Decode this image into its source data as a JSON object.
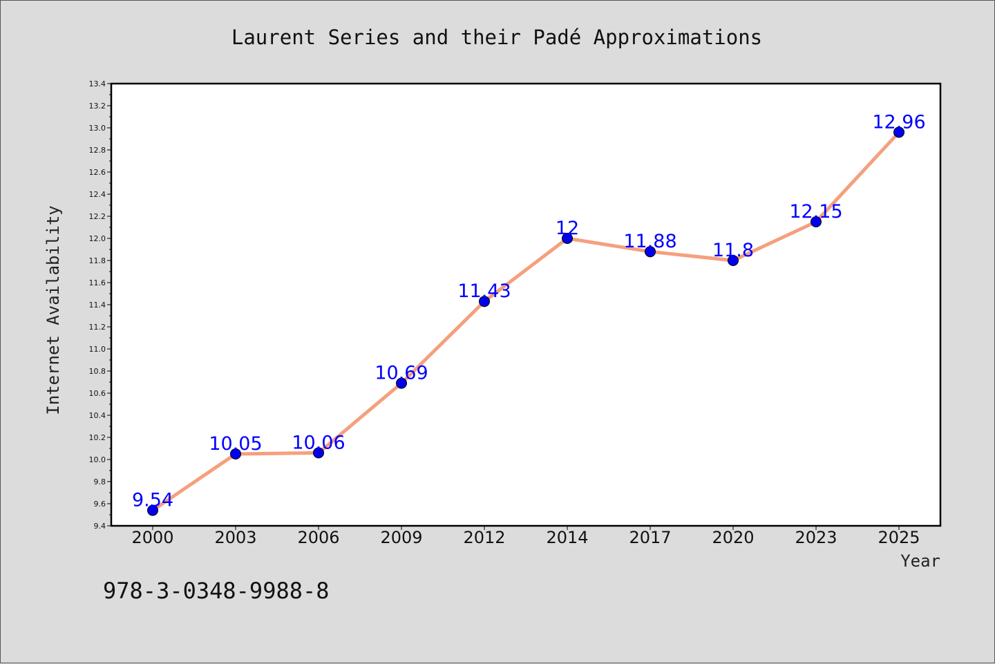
{
  "chart_data": {
    "type": "line",
    "title": "Laurent Series and their Padé Approximations",
    "xlabel": "Year",
    "ylabel": "Internet Availability",
    "categories": [
      "2000",
      "2003",
      "2006",
      "2009",
      "2012",
      "2014",
      "2017",
      "2020",
      "2023",
      "2025"
    ],
    "values": [
      9.54,
      10.05,
      10.06,
      10.69,
      11.43,
      12,
      11.88,
      11.8,
      12.15,
      12.96
    ],
    "data_labels": [
      "9.54",
      "10.05",
      "10.06",
      "10.69",
      "11.43",
      "12",
      "11.88",
      "11.8",
      "12.15",
      "12.96"
    ],
    "ylim": [
      9.4,
      13.4
    ],
    "yticks": [
      9.4,
      9.6,
      9.8,
      10.0,
      10.2,
      10.4,
      10.6,
      10.8,
      11.0,
      11.2,
      11.4,
      11.6,
      11.8,
      12.0,
      12.2,
      12.4,
      12.6,
      12.8,
      13.0,
      13.2,
      13.4
    ],
    "ytick_labels": [
      "9.4",
      "9.6",
      "9.8",
      "10.0",
      "10.2",
      "10.4",
      "10.6",
      "10.8",
      "11.0",
      "11.2",
      "11.4",
      "11.6",
      "11.8",
      "12.0",
      "12.2",
      "12.4",
      "12.6",
      "12.8",
      "13.0",
      "13.2",
      "13.4"
    ],
    "grid": false,
    "legend": "none"
  },
  "footnote": "978-3-0348-9988-8",
  "colors": {
    "background": "#dcdcdc",
    "plot_background": "#ffffff",
    "line": "#f4a07e",
    "marker": "#0000ee",
    "data_label": "#0000ff"
  }
}
